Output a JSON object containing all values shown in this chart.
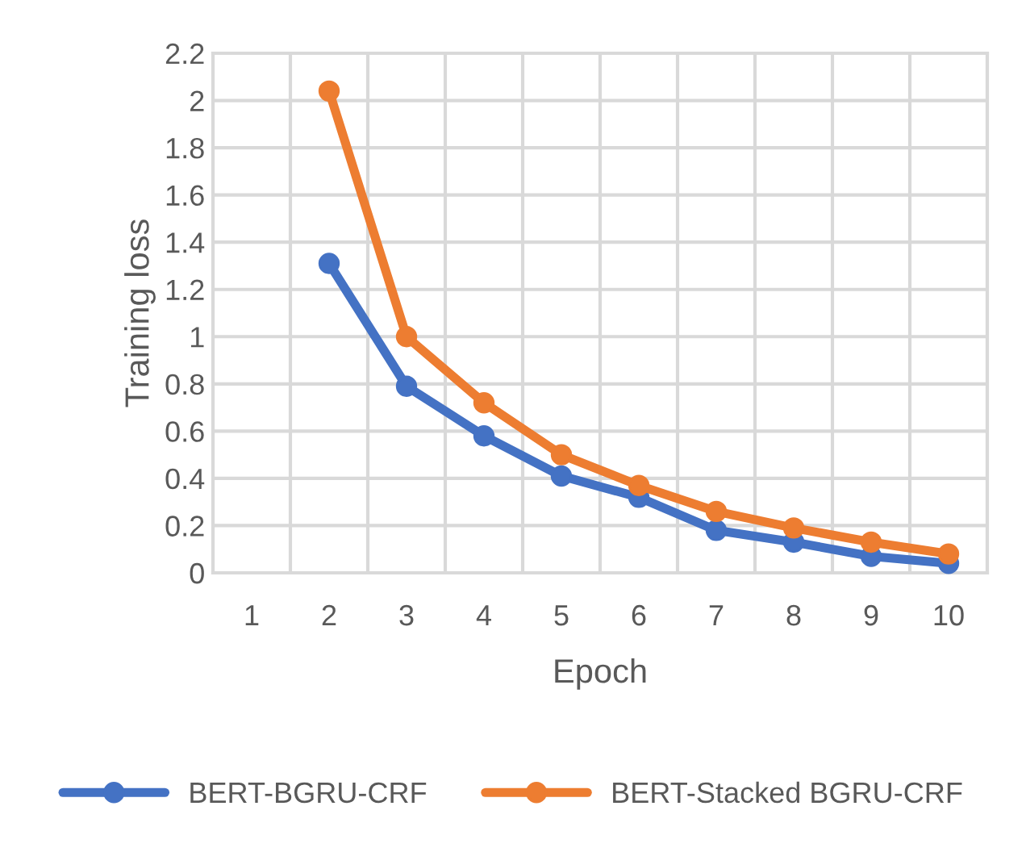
{
  "chart_data": {
    "type": "line",
    "xlabel": "Epoch",
    "ylabel": "Training loss",
    "categories": [
      "1",
      "2",
      "3",
      "4",
      "5",
      "6",
      "7",
      "8",
      "9",
      "10"
    ],
    "series": [
      {
        "name": "BERT-BGRU-CRF",
        "color": "#4472c4",
        "values": [
          null,
          1.31,
          0.79,
          0.58,
          0.41,
          0.32,
          0.18,
          0.13,
          0.07,
          0.04
        ]
      },
      {
        "name": "BERT-Stacked BGRU-CRF",
        "color": "#ed7d31",
        "values": [
          null,
          2.04,
          1.0,
          0.72,
          0.5,
          0.37,
          0.26,
          0.19,
          0.13,
          0.08
        ]
      }
    ],
    "ylim": [
      0,
      2.2
    ],
    "yticks": [
      0,
      0.2,
      0.4,
      0.6,
      0.8,
      1,
      1.2,
      1.4,
      1.6,
      1.8,
      2,
      2.2
    ],
    "grid": true,
    "legend": "bottom",
    "marker": "circle",
    "line_style": "solid"
  }
}
